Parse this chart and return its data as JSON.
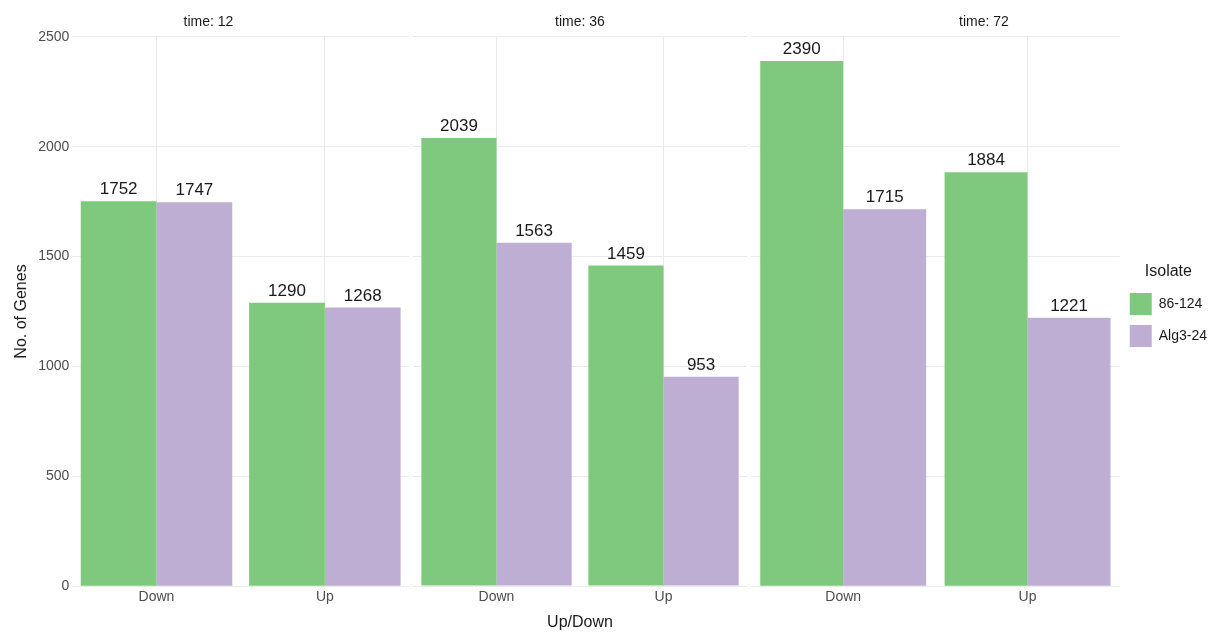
{
  "chart_data": [
    {
      "type": "bar",
      "title": "time: 12",
      "ylabel": "No. of Genes",
      "categories": [
        "Down",
        "Up"
      ],
      "series": [
        {
          "color": "#7fc97f",
          "values": [
            1752,
            1290
          ]
        },
        {
          "color": "#beaed4",
          "values": [
            1747,
            1268
          ]
        }
      ],
      "ylim": [
        0,
        2500
      ],
      "yticks": [
        0,
        500,
        1000,
        1500,
        2000,
        2500
      ],
      "grid": true,
      "data_labels": true
    },
    {
      "type": "bar",
      "title": "time: 36",
      "xlabel": "Up/Down",
      "categories": [
        "Down",
        "Up"
      ],
      "series": [
        {
          "color": "#7fc97f",
          "values": [
            2039,
            1459
          ]
        },
        {
          "color": "#beaed4",
          "values": [
            1563,
            953
          ]
        }
      ],
      "ylim": [
        0,
        2500
      ],
      "yticks": [
        0,
        500,
        1000,
        1500,
        2000,
        2500
      ],
      "tick_labels": "x",
      "grid": true,
      "data_labels": true
    },
    {
      "type": "bar",
      "title": "time: 72",
      "categories": [
        "Down",
        "Up"
      ],
      "series": [
        {
          "name": "86-124",
          "color": "#7fc97f",
          "values": [
            2390,
            1884
          ]
        },
        {
          "name": "Alg3-24",
          "color": "#beaed4",
          "values": [
            1715,
            1221
          ]
        }
      ],
      "ylim": [
        0,
        2500
      ],
      "yticks": [
        0,
        500,
        1000,
        1500,
        2000,
        2500
      ],
      "tick_labels": "x",
      "grid": true,
      "data_labels": true,
      "legend": "right",
      "legend_title": "Isolate"
    }
  ]
}
